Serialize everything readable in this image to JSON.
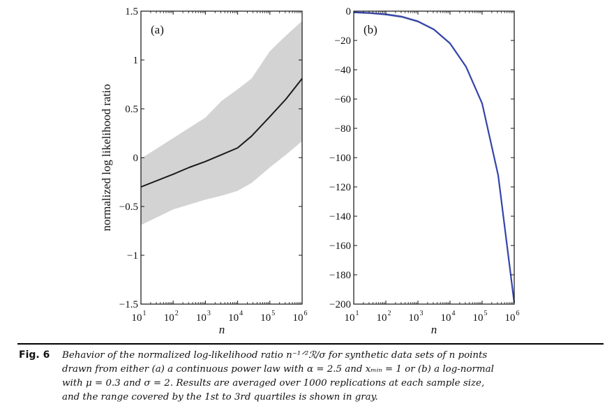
{
  "chart_data": [
    {
      "type": "line",
      "panel_label": "(a)",
      "xlabel": "n",
      "ylabel": "normalized log likelihood ratio",
      "xscale": "log",
      "xlim": [
        10,
        1000000
      ],
      "ylim": [
        -1.5,
        1.5
      ],
      "xticks": [
        {
          "base": "10",
          "exp": "1",
          "value": 10
        },
        {
          "base": "10",
          "exp": "2",
          "value": 100
        },
        {
          "base": "10",
          "exp": "3",
          "value": 1000
        },
        {
          "base": "10",
          "exp": "4",
          "value": 10000
        },
        {
          "base": "10",
          "exp": "5",
          "value": 100000
        },
        {
          "base": "10",
          "exp": "6",
          "value": 1000000
        }
      ],
      "yticks": [
        {
          "label": "1.5",
          "value": 1.5
        },
        {
          "label": "1",
          "value": 1
        },
        {
          "label": "0.5",
          "value": 0.5
        },
        {
          "label": "0",
          "value": 0
        },
        {
          "label": "−0.5",
          "value": -0.5
        },
        {
          "label": "−1",
          "value": -1
        },
        {
          "label": "−1.5",
          "value": -1.5
        }
      ],
      "grid": false,
      "series": [
        {
          "name": "mean",
          "color": "#1a1a1a",
          "x": [
            10,
            100,
            316,
            1000,
            3162,
            10000,
            26900,
            100000,
            316228,
            1000000
          ],
          "y": [
            -0.3,
            -0.17,
            -0.1,
            -0.04,
            0.03,
            0.1,
            0.22,
            0.42,
            0.6,
            0.81
          ]
        }
      ],
      "band": {
        "name": "1st to 3rd quartile range",
        "color": "#d3d3d3",
        "x": [
          10,
          100,
          1000,
          3162,
          10000,
          26900,
          100000,
          316228,
          1000000
        ],
        "upper": [
          -0.01,
          0.2,
          0.41,
          0.58,
          0.7,
          0.81,
          1.09,
          1.25,
          1.4
        ],
        "lower": [
          -0.69,
          -0.53,
          -0.43,
          -0.39,
          -0.34,
          -0.26,
          -0.1,
          0.03,
          0.17
        ]
      }
    },
    {
      "type": "line",
      "panel_label": "(b)",
      "xlabel": "n",
      "ylabel": "",
      "xscale": "log",
      "xlim": [
        10,
        1000000
      ],
      "ylim": [
        -200,
        0
      ],
      "xticks": [
        {
          "base": "10",
          "exp": "1",
          "value": 10
        },
        {
          "base": "10",
          "exp": "2",
          "value": 100
        },
        {
          "base": "10",
          "exp": "3",
          "value": 1000
        },
        {
          "base": "10",
          "exp": "4",
          "value": 10000
        },
        {
          "base": "10",
          "exp": "5",
          "value": 100000
        },
        {
          "base": "10",
          "exp": "6",
          "value": 1000000
        }
      ],
      "yticks": [
        {
          "label": "0",
          "value": 0
        },
        {
          "label": "−20",
          "value": -20
        },
        {
          "label": "−40",
          "value": -40
        },
        {
          "label": "−60",
          "value": -60
        },
        {
          "label": "−80",
          "value": -80
        },
        {
          "label": "−100",
          "value": -100
        },
        {
          "label": "−120",
          "value": -120
        },
        {
          "label": "−140",
          "value": -140
        },
        {
          "label": "−160",
          "value": -160
        },
        {
          "label": "−180",
          "value": -180
        },
        {
          "label": "−200",
          "value": -200
        }
      ],
      "grid": false,
      "series": [
        {
          "name": "mean",
          "color": "#3344aa",
          "x": [
            10,
            31.6,
            100,
            316,
            1000,
            3162,
            10000,
            31623,
            100000,
            316228,
            1000000
          ],
          "y": [
            -0.8,
            -1.3,
            -2.2,
            -3.8,
            -7.0,
            -12.5,
            -22.0,
            -38.0,
            -63.0,
            -112.0,
            -199.0
          ]
        }
      ],
      "band": {
        "name": "1st to 3rd quartile range",
        "color": "#c8c8d8",
        "x": [
          10,
          31.6,
          100,
          316,
          1000,
          3162,
          10000,
          31623,
          100000,
          316228,
          1000000
        ],
        "upper": [
          -0.2,
          -0.6,
          -1.4,
          -3.0,
          -6.2,
          -11.7,
          -21.2,
          -37.2,
          -62.2,
          -111.2,
          -198.2
        ],
        "lower": [
          -1.4,
          -2.0,
          -3.0,
          -4.6,
          -7.8,
          -13.3,
          -22.8,
          -38.8,
          -63.8,
          -112.8,
          -199.8
        ]
      }
    }
  ],
  "caption": {
    "tag": "Fig. 6",
    "lines": [
      "Behavior of the normalized log-likelihood ratio n⁻¹ᐟ²ℛ/σ for synthetic data sets of n points",
      "drawn from either (a) a continuous power law with α = 2.5 and xₘᵢₙ = 1 or (b) a log-normal",
      "with μ = 0.3 and σ = 2.  Results are averaged over 1000 replications at each sample size,",
      "and the range covered by the 1st to 3rd quartiles is shown in gray."
    ]
  }
}
